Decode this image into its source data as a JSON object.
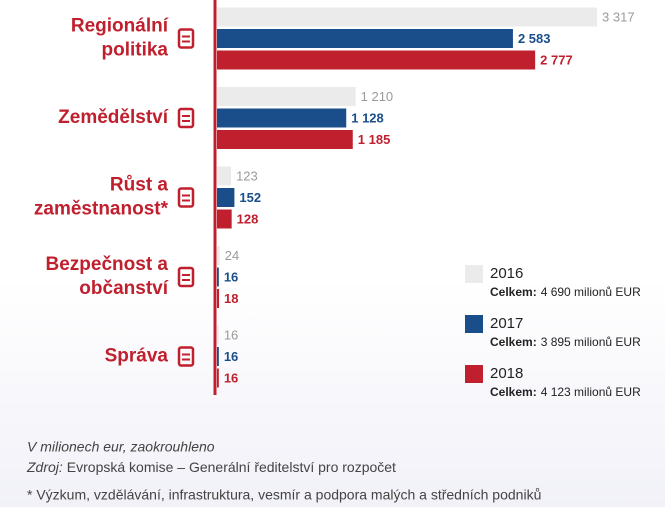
{
  "chart_data": {
    "type": "bar",
    "orientation": "horizontal",
    "categories": [
      "Regionální politika",
      "Zemědělství",
      "Růst a zaměstnanost*",
      "Bezpečnost a občanství",
      "Správa"
    ],
    "series": [
      {
        "name": "2016",
        "color": "#ebebeb",
        "label_color": "#9a9a9a",
        "values": [
          3317,
          1210,
          123,
          24,
          16
        ],
        "value_labels": [
          "3 317",
          "1 210",
          "123",
          "24",
          "16"
        ],
        "total_prefix": "Celkem:",
        "total_label": "4 690 milionů EUR"
      },
      {
        "name": "2017",
        "color": "#1a4e8a",
        "label_color": "#1a4e8a",
        "values": [
          2583,
          1128,
          152,
          16,
          16
        ],
        "value_labels": [
          "2 583",
          "1 128",
          "152",
          "16",
          "16"
        ],
        "total_prefix": "Celkem:",
        "total_label": "3 895 milionů EUR"
      },
      {
        "name": "2018",
        "color": "#c0202e",
        "label_color": "#c0202e",
        "values": [
          2777,
          1185,
          128,
          18,
          16
        ],
        "value_labels": [
          "2 777",
          "1 185",
          "128",
          "18",
          "16"
        ],
        "total_prefix": "Celkem:",
        "total_label": "4 123 milionů EUR"
      }
    ],
    "xlim": [
      0,
      3500
    ],
    "note": "V milionech eur, zaokrouhleno",
    "source_prefix": "Zdroj:",
    "source": "Evropská komise – Generální ředitelství pro rozpočet",
    "footnote": "* Výzkum, vzdělávání, infrastruktura, vesmír a podpora malých a středních podniků"
  }
}
